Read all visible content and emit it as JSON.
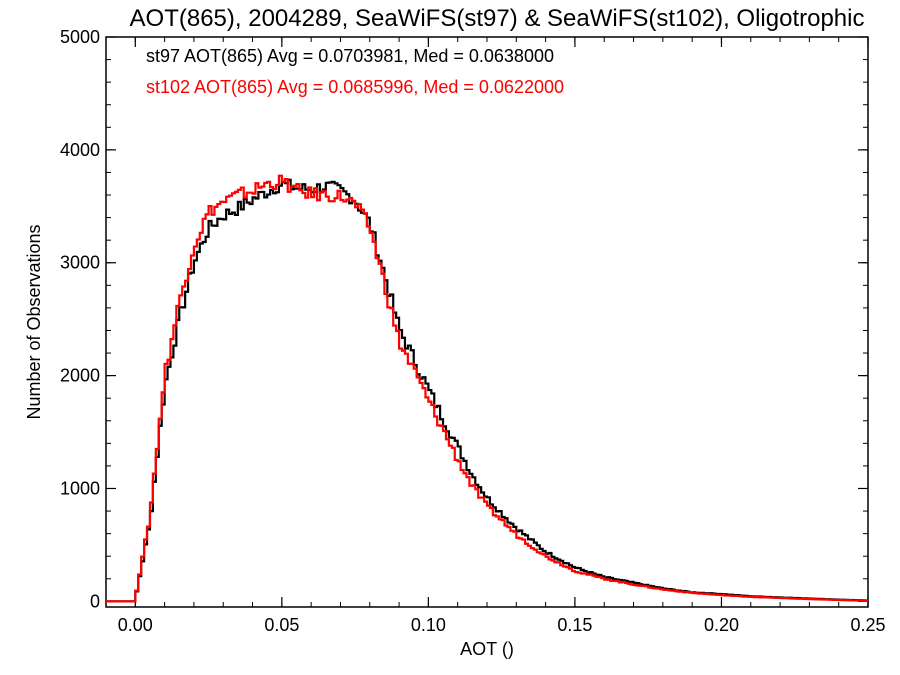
{
  "chart_data": {
    "type": "line",
    "title": "AOT(865), 2004289, SeaWiFS(st97) & SeaWiFS(st102), Oligotrophic",
    "xlabel": "AOT ()",
    "ylabel": "Number of Observations",
    "xlim": [
      -0.01,
      0.25
    ],
    "ylim": [
      -50,
      5000
    ],
    "xticks": [
      0.0,
      0.05,
      0.1,
      0.15,
      0.2,
      0.25
    ],
    "xtick_labels": [
      "0.00",
      "0.05",
      "0.10",
      "0.15",
      "0.20",
      "0.25"
    ],
    "yticks": [
      0,
      1000,
      2000,
      3000,
      4000,
      5000
    ],
    "ytick_labels": [
      "0",
      "1000",
      "2000",
      "3000",
      "4000",
      "5000"
    ],
    "grid": false,
    "legend": {
      "placement": "top-left"
    },
    "x": [
      -0.01,
      0.0,
      0.005,
      0.01,
      0.015,
      0.02,
      0.025,
      0.03,
      0.035,
      0.04,
      0.045,
      0.05,
      0.055,
      0.06,
      0.065,
      0.07,
      0.075,
      0.08,
      0.085,
      0.09,
      0.095,
      0.1,
      0.105,
      0.11,
      0.115,
      0.12,
      0.125,
      0.13,
      0.14,
      0.15,
      0.16,
      0.17,
      0.18,
      0.19,
      0.2,
      0.21,
      0.22,
      0.23,
      0.24,
      0.25
    ],
    "series": [
      {
        "name": "st97",
        "label": "st97 AOT(865) Avg = 0.0703981, Med = 0.0638000",
        "color": "#000000",
        "values": [
          0,
          20,
          700,
          1900,
          2500,
          3000,
          3300,
          3420,
          3480,
          3560,
          3630,
          3700,
          3660,
          3650,
          3680,
          3640,
          3560,
          3350,
          2900,
          2420,
          2150,
          1880,
          1620,
          1370,
          1120,
          920,
          780,
          650,
          440,
          300,
          215,
          165,
          115,
          80,
          65,
          45,
          35,
          25,
          15,
          8
        ]
      },
      {
        "name": "st102",
        "label": "st102 AOT(865) Avg = 0.0685996, Med = 0.0622000",
        "color": "#ff0000",
        "values": [
          0,
          25,
          750,
          2000,
          2650,
          3150,
          3450,
          3540,
          3600,
          3640,
          3700,
          3720,
          3640,
          3610,
          3600,
          3590,
          3520,
          3320,
          2820,
          2300,
          2050,
          1780,
          1520,
          1260,
          1020,
          840,
          720,
          590,
          400,
          270,
          200,
          150,
          105,
          75,
          55,
          40,
          30,
          20,
          12,
          5
        ]
      }
    ]
  }
}
